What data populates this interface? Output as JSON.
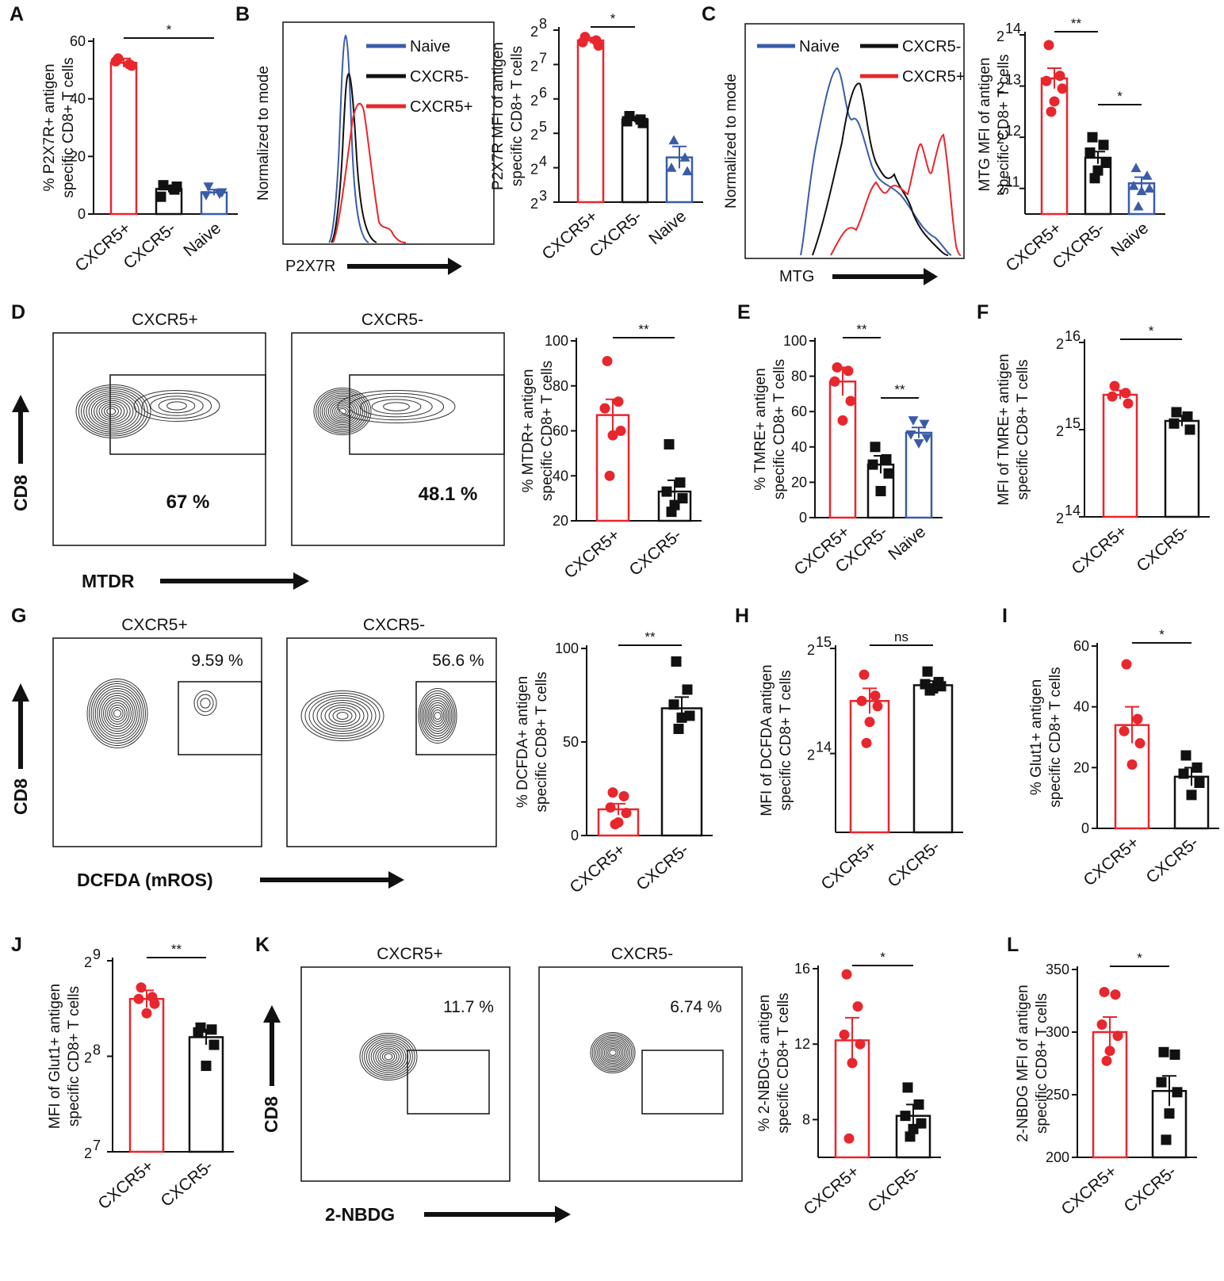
{
  "colors": {
    "cxcr5_pos": "#e8262d",
    "cxcr5_neg": "#111111",
    "naive": "#3a5ca8"
  },
  "panel_labels": {
    "A": "A",
    "B": "B",
    "C": "C",
    "D": "D",
    "E": "E",
    "F": "F",
    "G": "G",
    "H": "H",
    "I": "I",
    "J": "J",
    "K": "K",
    "L": "L"
  },
  "legend": {
    "naive": "Naive",
    "cxcr5_neg": "CXCR5-",
    "cxcr5_pos": "CXCR5+"
  },
  "hist_labels": {
    "ylabel": "Normalized to mode",
    "b_xlabel": "P2X7R",
    "c_xlabel": "MTG"
  },
  "flow": {
    "col_pos": "CXCR5+",
    "col_neg": "CXCR5-",
    "ylabel": "CD8",
    "d": {
      "xlabel": "MTDR",
      "pct_pos": "67 %",
      "pct_neg": "48.1 %"
    },
    "g": {
      "xlabel": "DCFDA (mROS)",
      "pct_pos": "9.59 %",
      "pct_neg": "56.6 %"
    },
    "k": {
      "xlabel": "2-NBDG",
      "pct_pos": "11.7 %",
      "pct_neg": "6.74 %"
    }
  },
  "chart_data": [
    {
      "id": "A",
      "type": "bar",
      "scale": "linear",
      "ylabel": [
        "% P2X7R+ antigen",
        "specific CD8+ T cells"
      ],
      "ylim": [
        0,
        60
      ],
      "ticks": [
        0,
        20,
        40,
        60
      ],
      "categories": [
        "CXCR5+",
        "CXCR5-",
        "Naive"
      ],
      "series": [
        {
          "name": "CXCR5+",
          "mean": 52.5,
          "sem": 1.5,
          "points": [
            54,
            52,
            53,
            51.5
          ],
          "marker": "circle"
        },
        {
          "name": "CXCR5-",
          "mean": 8.7,
          "sem": 1.2,
          "points": [
            10,
            8.5,
            6,
            9.5
          ],
          "marker": "square"
        },
        {
          "name": "Naive",
          "mean": 7.5,
          "sem": 1.0,
          "points": [
            9.5,
            7,
            6.5,
            7.5
          ],
          "marker": "triangle-down"
        }
      ],
      "significance": [
        {
          "from": 0,
          "to": 2,
          "label": "*"
        }
      ]
    },
    {
      "id": "B",
      "type": "bar",
      "scale": "log2",
      "ylabel": [
        "P2X7R MFI of antigen",
        "specific CD8+ T cells"
      ],
      "ylim": [
        3,
        8
      ],
      "ticks": [
        3,
        4,
        5,
        6,
        7,
        8
      ],
      "categories": [
        "CXCR5+",
        "CXCR5-",
        "Naive"
      ],
      "series": [
        {
          "name": "CXCR5+",
          "mean": 7.7,
          "sem": 0.08,
          "points": [
            7.8,
            7.7,
            7.65,
            7.55
          ],
          "marker": "circle"
        },
        {
          "name": "CXCR5-",
          "mean": 5.4,
          "sem": 0.08,
          "points": [
            5.5,
            5.4,
            5.35,
            5.3
          ],
          "marker": "square"
        },
        {
          "name": "Naive",
          "mean": 4.3,
          "sem": 0.32,
          "points": [
            4.8,
            4.3,
            4.0,
            3.9
          ],
          "marker": "triangle-up"
        }
      ],
      "significance": [
        {
          "from": 0,
          "to": 1,
          "label": "*"
        }
      ]
    },
    {
      "id": "C",
      "type": "bar",
      "scale": "log2",
      "ylabel": [
        "MTG MFI of antigen",
        "specific CD8+ T cells"
      ],
      "ylim": [
        10.5,
        14
      ],
      "ticks": [
        11,
        12,
        13,
        14
      ],
      "categories": [
        "CXCR5+",
        "CXCR5-",
        "Naive"
      ],
      "series": [
        {
          "name": "CXCR5+",
          "mean": 13.15,
          "sem": 0.2,
          "points": [
            13.8,
            13.2,
            13.1,
            12.95,
            12.7,
            12.5
          ],
          "marker": "circle"
        },
        {
          "name": "CXCR5-",
          "mean": 11.6,
          "sem": 0.12,
          "points": [
            12.0,
            11.85,
            11.7,
            11.5,
            11.35,
            11.2
          ],
          "marker": "square"
        },
        {
          "name": "Naive",
          "mean": 11.1,
          "sem": 0.12,
          "points": [
            11.4,
            11.25,
            11.05,
            11.0,
            10.95,
            10.65
          ],
          "marker": "triangle-up"
        }
      ],
      "significance": [
        {
          "from": 0,
          "to": 1,
          "label": "**"
        },
        {
          "from": 1,
          "to": 2,
          "label": "*"
        }
      ]
    },
    {
      "id": "D",
      "type": "bar",
      "scale": "linear",
      "ylabel": [
        "% MTDR+ antigen",
        "specific CD8+ T cells"
      ],
      "ylim": [
        20,
        100
      ],
      "ticks": [
        20,
        40,
        60,
        80,
        100
      ],
      "categories": [
        "CXCR5+",
        "CXCR5-"
      ],
      "series": [
        {
          "name": "CXCR5+",
          "mean": 67,
          "sem": 7,
          "points": [
            91,
            73,
            70,
            60,
            58,
            40
          ],
          "marker": "circle"
        },
        {
          "name": "CXCR5-",
          "mean": 33,
          "sem": 5,
          "points": [
            54,
            37,
            33,
            30,
            27,
            24
          ],
          "marker": "square"
        }
      ],
      "significance": [
        {
          "from": 0,
          "to": 1,
          "label": "**"
        }
      ]
    },
    {
      "id": "E",
      "type": "bar",
      "scale": "linear",
      "ylabel": [
        "% TMRE+ antigen",
        "specific CD8+ T cells"
      ],
      "ylim": [
        0,
        100
      ],
      "ticks": [
        0,
        20,
        40,
        60,
        80,
        100
      ],
      "categories": [
        "CXCR5+",
        "CXCR5-",
        "Naive"
      ],
      "series": [
        {
          "name": "CXCR5+",
          "mean": 77,
          "sem": 8,
          "points": [
            85,
            83,
            77,
            66,
            55
          ],
          "marker": "circle"
        },
        {
          "name": "CXCR5-",
          "mean": 30,
          "sem": 5,
          "points": [
            40,
            33,
            30,
            25,
            15
          ],
          "marker": "square"
        },
        {
          "name": "Naive",
          "mean": 48,
          "sem": 3,
          "points": [
            55,
            53,
            47,
            45,
            42
          ],
          "marker": "triangle-down"
        }
      ],
      "significance": [
        {
          "from": 0,
          "to": 1,
          "label": "**"
        },
        {
          "from": 1,
          "to": 2,
          "label": "**"
        }
      ]
    },
    {
      "id": "F",
      "type": "bar",
      "scale": "log2",
      "ylabel": [
        "MFI of TMRE+ antigen",
        "specific CD8+ T cells"
      ],
      "ylim": [
        14,
        16
      ],
      "ticks": [
        14,
        15,
        16
      ],
      "categories": [
        "CXCR5+",
        "CXCR5-"
      ],
      "series": [
        {
          "name": "CXCR5+",
          "mean": 15.4,
          "sem": 0.05,
          "points": [
            15.5,
            15.42,
            15.38,
            15.3
          ],
          "marker": "circle"
        },
        {
          "name": "CXCR5-",
          "mean": 15.1,
          "sem": 0.06,
          "points": [
            15.2,
            15.15,
            15.07,
            15.0
          ],
          "marker": "square"
        }
      ],
      "significance": [
        {
          "from": 0,
          "to": 1,
          "label": "*"
        }
      ]
    },
    {
      "id": "G",
      "type": "bar",
      "scale": "linear",
      "ylabel": [
        "% DCFDA+ antigen",
        "specific CD8+ T cells"
      ],
      "ylim": [
        0,
        100
      ],
      "ticks": [
        0,
        50,
        100
      ],
      "categories": [
        "CXCR5+",
        "CXCR5-"
      ],
      "series": [
        {
          "name": "CXCR5+",
          "mean": 14,
          "sem": 3,
          "points": [
            23,
            21,
            15,
            12,
            7,
            6
          ],
          "marker": "circle"
        },
        {
          "name": "CXCR5-",
          "mean": 68,
          "sem": 6,
          "points": [
            93,
            78,
            70,
            64,
            63,
            57
          ],
          "marker": "square"
        }
      ],
      "significance": [
        {
          "from": 0,
          "to": 1,
          "label": "**"
        }
      ]
    },
    {
      "id": "H",
      "type": "bar",
      "scale": "log2",
      "ylabel": [
        "MFI of DCFDA antigen",
        "specific CD8+ T cells"
      ],
      "ylim": [
        13.25,
        15
      ],
      "ticks": [
        14,
        15
      ],
      "categories": [
        "CXCR5+",
        "CXCR5-"
      ],
      "series": [
        {
          "name": "CXCR5+",
          "mean": 14.5,
          "sem": 0.12,
          "points": [
            14.75,
            14.55,
            14.5,
            14.45,
            14.3,
            14.1
          ],
          "marker": "circle"
        },
        {
          "name": "CXCR5-",
          "mean": 14.65,
          "sem": 0.04,
          "points": [
            14.78,
            14.68,
            14.66,
            14.64,
            14.62,
            14.6
          ],
          "marker": "square"
        }
      ],
      "significance": [
        {
          "from": 0,
          "to": 1,
          "label": "ns"
        }
      ]
    },
    {
      "id": "I",
      "type": "bar",
      "scale": "linear",
      "ylabel": [
        "% Glut1+ antigen",
        "specific CD8+ T cells"
      ],
      "ylim": [
        0,
        60
      ],
      "ticks": [
        0,
        20,
        40,
        60
      ],
      "categories": [
        "CXCR5+",
        "CXCR5-"
      ],
      "series": [
        {
          "name": "CXCR5+",
          "mean": 34,
          "sem": 6,
          "points": [
            54,
            36,
            32,
            28,
            21
          ],
          "marker": "circle"
        },
        {
          "name": "CXCR5-",
          "mean": 17,
          "sem": 3,
          "points": [
            24,
            20,
            18,
            15,
            11
          ],
          "marker": "square"
        }
      ],
      "significance": [
        {
          "from": 0,
          "to": 1,
          "label": "*"
        }
      ]
    },
    {
      "id": "J",
      "type": "bar",
      "scale": "log2",
      "ylabel": [
        "MFI of Glut1+ antigen",
        "specific CD8+ T cells"
      ],
      "ylim": [
        7,
        9
      ],
      "ticks": [
        7,
        8,
        9
      ],
      "categories": [
        "CXCR5+",
        "CXCR5-"
      ],
      "series": [
        {
          "name": "CXCR5+",
          "mean": 8.6,
          "sem": 0.09,
          "points": [
            8.72,
            8.62,
            8.6,
            8.55,
            8.45
          ],
          "marker": "circle"
        },
        {
          "name": "CXCR5-",
          "mean": 8.2,
          "sem": 0.08,
          "points": [
            8.3,
            8.28,
            8.25,
            8.12,
            7.9
          ],
          "marker": "square"
        }
      ],
      "significance": [
        {
          "from": 0,
          "to": 1,
          "label": "**"
        }
      ]
    },
    {
      "id": "K",
      "type": "bar",
      "scale": "linear",
      "ylabel": [
        "% 2-NBDG+ antigen",
        "specific CD8+ T cells"
      ],
      "ylim": [
        6,
        16
      ],
      "ticks": [
        8,
        12,
        16
      ],
      "categories": [
        "CXCR5+",
        "CXCR5-"
      ],
      "series": [
        {
          "name": "CXCR5+",
          "mean": 12.2,
          "sem": 1.2,
          "points": [
            15.7,
            14,
            12.5,
            12,
            11,
            7
          ],
          "marker": "circle"
        },
        {
          "name": "CXCR5-",
          "mean": 8.2,
          "sem": 0.6,
          "points": [
            9.7,
            8.8,
            8.2,
            7.8,
            7.5,
            7.1
          ],
          "marker": "square"
        }
      ],
      "significance": [
        {
          "from": 0,
          "to": 1,
          "label": "*"
        }
      ]
    },
    {
      "id": "L",
      "type": "bar",
      "scale": "linear",
      "ylabel": [
        "2-NBDG MFI of antigen",
        "specific CD8+ T cells"
      ],
      "ylim": [
        200,
        350
      ],
      "ticks": [
        200,
        250,
        300,
        350
      ],
      "categories": [
        "CXCR5+",
        "CXCR5-"
      ],
      "series": [
        {
          "name": "CXCR5+",
          "mean": 300,
          "sem": 12,
          "points": [
            332,
            330,
            306,
            297,
            285,
            277
          ],
          "marker": "circle"
        },
        {
          "name": "CXCR5-",
          "mean": 253,
          "sem": 12,
          "points": [
            284,
            282,
            260,
            252,
            235,
            214
          ],
          "marker": "square"
        }
      ],
      "significance": [
        {
          "from": 0,
          "to": 1,
          "label": "*"
        }
      ]
    }
  ]
}
